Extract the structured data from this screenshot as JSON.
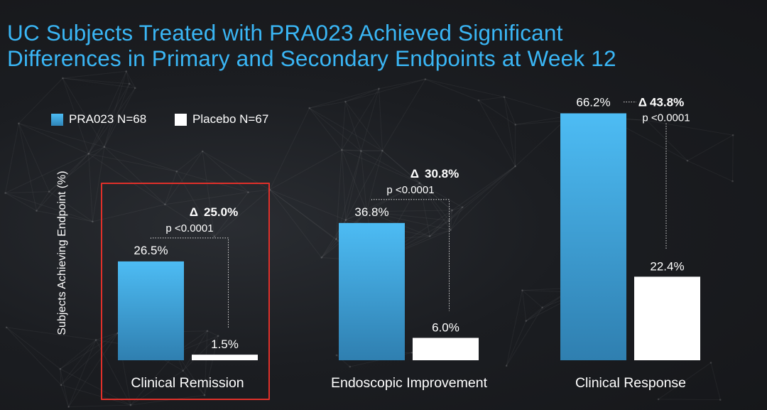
{
  "title_lines": [
    "UC Subjects Treated with PRA023 Achieved Significant",
    "Differences in Primary and Secondary Endpoints at Week 12"
  ],
  "colors": {
    "title": "#3ab6f5",
    "pra023_top": "#4dbcf4",
    "pra023_bottom": "#2f7fb0",
    "placebo": "#ffffff",
    "highlight": "#e0302a"
  },
  "chart_data": {
    "type": "bar",
    "title": "",
    "ylabel": "Subjects Achieving Endpoint (%)",
    "xlabel": "",
    "ylim": [
      0,
      70
    ],
    "grid": false,
    "legend_position": "top-left",
    "categories": [
      "Clinical Remission",
      "Endoscopic Improvement",
      "Clinical Response"
    ],
    "series": [
      {
        "name": "PRA023 N=68",
        "values": [
          26.5,
          36.8,
          66.2
        ],
        "labels": [
          "26.5%",
          "36.8%",
          "66.2%"
        ]
      },
      {
        "name": "Placebo N=67",
        "values": [
          1.5,
          6.0,
          22.4
        ],
        "labels": [
          "1.5%",
          "6.0%",
          "22.4%"
        ]
      }
    ],
    "annotations": [
      {
        "category": "Clinical Remission",
        "delta": "25.0%",
        "p": "p <0.0001",
        "highlighted": true
      },
      {
        "category": "Endoscopic Improvement",
        "delta": "30.8%",
        "p": "p <0.0001",
        "highlighted": false
      },
      {
        "category": "Clinical Response",
        "delta": "43.8%",
        "p": "p <0.0001",
        "highlighted": false
      }
    ]
  }
}
